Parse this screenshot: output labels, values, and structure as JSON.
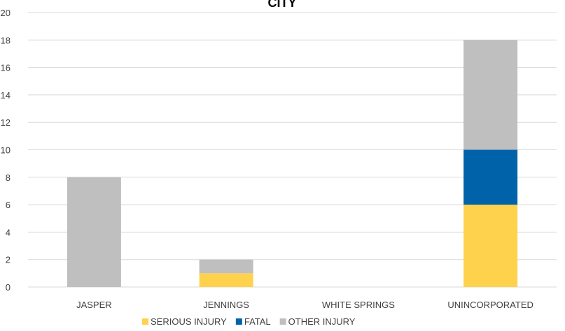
{
  "chart_data": {
    "type": "bar",
    "stacked": true,
    "title": "CITY",
    "categories": [
      "JASPER",
      "JENNINGS",
      "WHITE SPRINGS",
      "UNINCORPORATED"
    ],
    "series": [
      {
        "name": "SERIOUS INJURY",
        "color": "#ffd24d",
        "values": [
          0,
          1,
          0,
          6
        ]
      },
      {
        "name": "FATAL",
        "color": "#0063a9",
        "values": [
          0,
          0,
          0,
          4
        ]
      },
      {
        "name": "OTHER INJURY",
        "color": "#bfbfbf",
        "values": [
          8,
          1,
          0,
          8
        ]
      }
    ],
    "ylim": [
      0,
      20
    ],
    "yticks": [
      0,
      2,
      4,
      6,
      8,
      10,
      12,
      14,
      16,
      18,
      20
    ],
    "grid": true,
    "legend_position": "bottom"
  }
}
